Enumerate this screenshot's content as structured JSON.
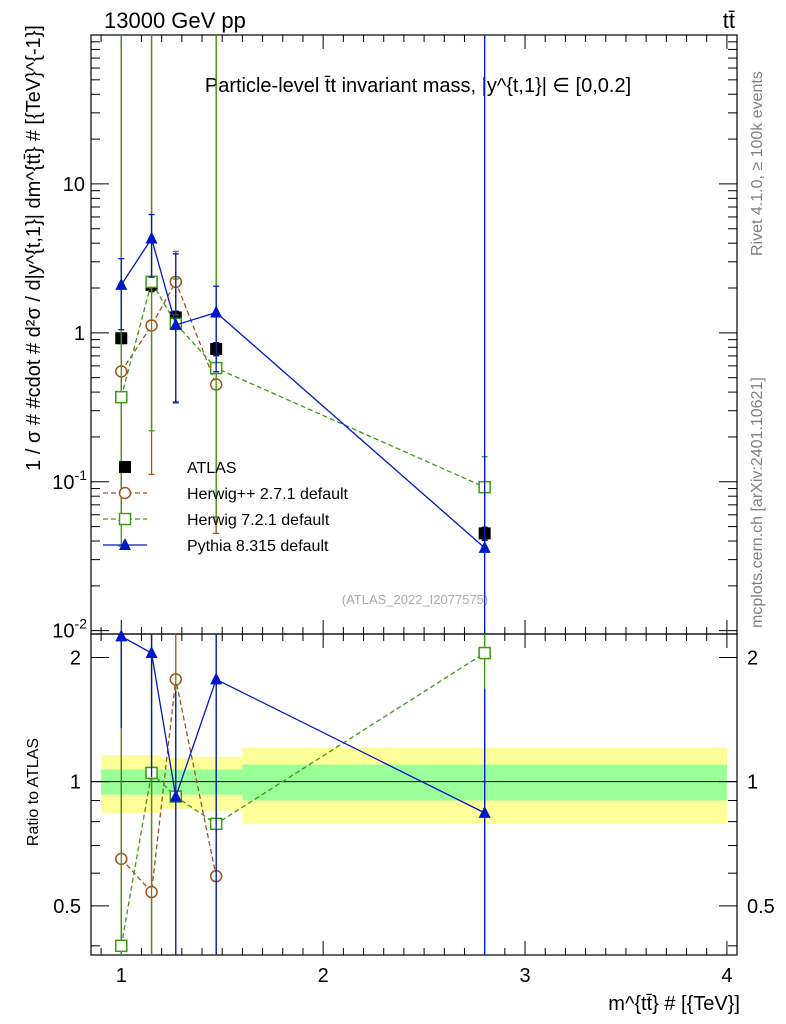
{
  "header": {
    "left": "13000 GeV pp",
    "right": "tt̄"
  },
  "side_labels": {
    "rivet": "Rivet 4.1.0, ≥ 100k events",
    "mcplots": "mcplots.cern.ch [arXiv:2401.10621]"
  },
  "chart_data": {
    "type": "scatter",
    "title": "Particle-level t̄t invariant mass, |y^{t,1}| ∈ [0,0.2]",
    "watermark": "(ATLAS_2022_I2077575)",
    "xlabel": "m^{tt̄} # [{TeV}]",
    "ylabel": "1 / σ # #cdot # d²σ / d|y^{t,1}| dm^{tt̄} # [{TeV}^{-1}]",
    "ratio_ylabel": "Ratio to ATLAS",
    "xlim": [
      0.85,
      4.05
    ],
    "ylim": [
      0.0095,
      100
    ],
    "yscale": "log",
    "ratio_ylim": [
      0.38,
      2.28
    ],
    "x_ticks": [
      "1",
      "2",
      "3",
      "4"
    ],
    "y_ticks": [
      "10^{-2}",
      "10^{-1}",
      "1",
      "10"
    ],
    "ratio_ticks": [
      "0.5",
      "1",
      "2"
    ],
    "bins": [
      [
        0.9,
        1.1
      ],
      [
        1.1,
        1.2
      ],
      [
        1.2,
        1.35
      ],
      [
        1.35,
        1.6
      ],
      [
        1.6,
        4.0
      ]
    ],
    "ratio_bands": {
      "inner": [
        0.07,
        0.07,
        0.07,
        0.07,
        0.1
      ],
      "outer": [
        0.16,
        0.16,
        0.14,
        0.15,
        0.21
      ]
    },
    "series": [
      {
        "name": "ATLAS",
        "color": "#000000",
        "marker": "square-filled",
        "line": "none",
        "x": [
          1.0,
          1.15,
          1.27,
          1.47,
          2.8
        ],
        "y": [
          0.92,
          2.1,
          1.27,
          0.78,
          0.045
        ]
      },
      {
        "name": "Herwig++ 2.7.1 default",
        "color": "#a0521b",
        "marker": "circle-open",
        "line": "dashed",
        "x": [
          1.0,
          1.15,
          1.27,
          1.47
        ],
        "y": [
          0.55,
          1.12,
          2.2,
          0.45
        ],
        "ratio": [
          0.65,
          0.54,
          1.77,
          0.59
        ]
      },
      {
        "name": "Herwig 7.2.1 default",
        "color": "#3c9a10",
        "marker": "square-open",
        "line": "dashed",
        "x": [
          1.0,
          1.15,
          1.27,
          1.47,
          2.8
        ],
        "y": [
          0.37,
          2.2,
          1.15,
          0.58,
          0.092
        ],
        "ratio": [
          0.4,
          1.05,
          0.92,
          0.79,
          2.05
        ]
      },
      {
        "name": "Pythia 8.315 default",
        "color": "#0018c8",
        "marker": "triangle-filled",
        "line": "solid",
        "x": [
          1.0,
          1.15,
          1.27,
          1.47,
          2.8
        ],
        "y": [
          2.1,
          4.3,
          1.13,
          1.37,
          0.036
        ],
        "ratio": [
          2.25,
          2.05,
          0.92,
          1.77,
          0.84
        ]
      }
    ]
  }
}
